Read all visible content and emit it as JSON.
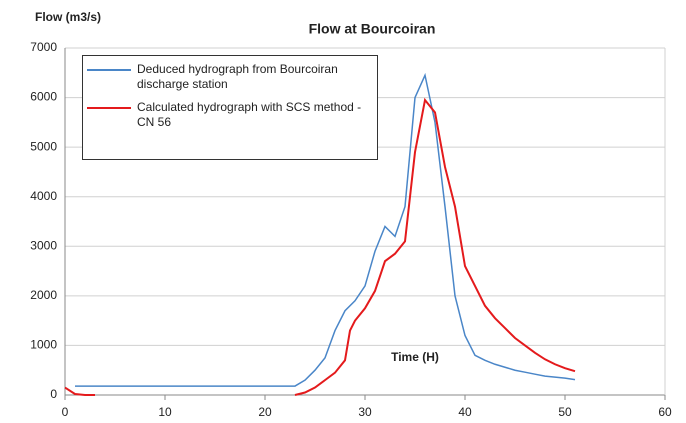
{
  "chart_data": {
    "type": "line",
    "title": "Flow at Bourcoiran",
    "ylabel": "Flow (m3/s)",
    "xlabel": "Time (H)",
    "xlim": [
      0,
      60
    ],
    "xticks": [
      0,
      10,
      20,
      30,
      40,
      50,
      60
    ],
    "ylim": [
      0,
      7000
    ],
    "yticks": [
      0,
      1000,
      2000,
      3000,
      4000,
      5000,
      6000,
      7000
    ],
    "grid": true,
    "series": [
      {
        "name": "Deduced hydrograph from Bourcoiran discharge station",
        "color": "#4a86c8",
        "x": [
          1,
          23,
          24,
          25,
          26,
          27,
          28,
          29,
          30,
          31,
          32,
          33,
          34,
          35,
          36,
          37,
          38,
          39,
          40,
          41,
          42,
          43,
          44,
          45,
          46,
          47,
          48,
          49,
          50,
          51
        ],
        "values": [
          180,
          180,
          300,
          500,
          750,
          1300,
          1700,
          1900,
          2200,
          2900,
          3400,
          3200,
          3800,
          6000,
          6450,
          5500,
          3800,
          2000,
          1200,
          800,
          700,
          620,
          560,
          500,
          460,
          420,
          380,
          360,
          340,
          310
        ]
      },
      {
        "name": "Calculated hydrograph with SCS method - CN 56",
        "color": "#e41a1c",
        "x": [
          0,
          1,
          2,
          3,
          13,
          23,
          24,
          25,
          26,
          27,
          28,
          28.5,
          29,
          30,
          31,
          32,
          33,
          34,
          35,
          36,
          37,
          38,
          39,
          40,
          41,
          42,
          43,
          44,
          45,
          46,
          47,
          48,
          49,
          50,
          51
        ],
        "values": [
          150,
          20,
          0,
          0,
          null,
          0,
          50,
          150,
          300,
          450,
          700,
          1300,
          1500,
          1750,
          2100,
          2700,
          2850,
          3100,
          4900,
          5950,
          5700,
          4600,
          3800,
          2600,
          2200,
          1800,
          1550,
          1350,
          1150,
          1000,
          850,
          720,
          620,
          540,
          480
        ]
      }
    ]
  }
}
